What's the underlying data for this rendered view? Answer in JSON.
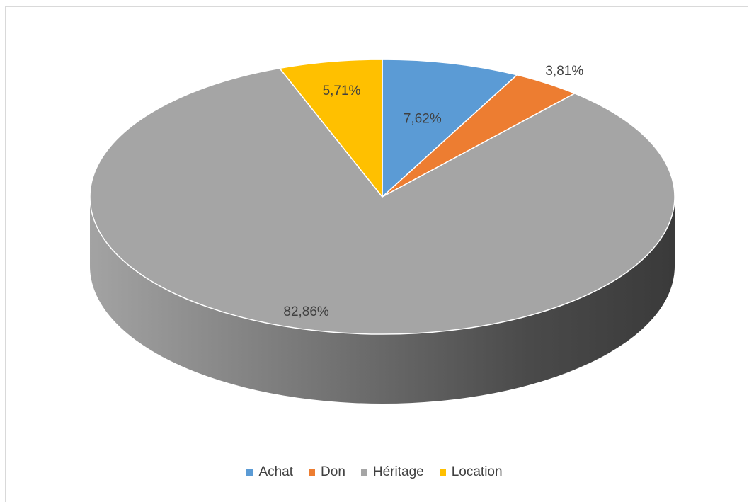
{
  "chart_data": {
    "type": "pie",
    "style": "3d",
    "categories": [
      "Achat",
      "Don",
      "Héritage",
      "Location"
    ],
    "values": [
      7.62,
      3.81,
      82.86,
      5.71
    ],
    "labels": [
      "7,62%",
      "3,81%",
      "82,86%",
      "5,71%"
    ],
    "colors": [
      "#5b9bd5",
      "#ed7d31",
      "#a5a5a5",
      "#ffc000"
    ],
    "legend_position": "bottom",
    "title": ""
  }
}
